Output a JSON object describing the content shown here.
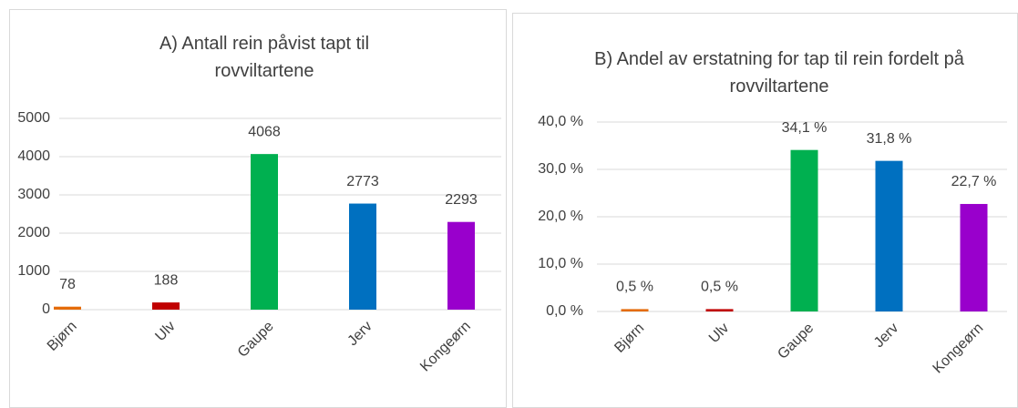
{
  "chart_data": [
    {
      "type": "bar",
      "title": "A) Antall rein påvist tapt til rovviltartene",
      "categories": [
        "Bjørn",
        "Ulv",
        "Gaupe",
        "Jerv",
        "Kongeørn"
      ],
      "values": [
        78,
        188,
        4068,
        2773,
        2293
      ],
      "colors": [
        "#e46c0a",
        "#c00000",
        "#00b050",
        "#0070c0",
        "#9900cc"
      ],
      "ylim": [
        0,
        5000
      ],
      "yticks": [
        0,
        1000,
        2000,
        3000,
        4000,
        5000
      ],
      "grid": true
    },
    {
      "type": "bar",
      "title": "B) Andel av erstatning for tap til rein fordelt på rovviltartene",
      "categories": [
        "Bjørn",
        "Ulv",
        "Gaupe",
        "Jerv",
        "Kongeørn"
      ],
      "values": [
        0.5,
        0.5,
        34.1,
        31.8,
        22.7
      ],
      "value_labels": [
        "0,5 %",
        "0,5 %",
        "34,1 %",
        "31,8 %",
        "22,7 %"
      ],
      "colors": [
        "#e46c0a",
        "#c00000",
        "#00b050",
        "#0070c0",
        "#9900cc"
      ],
      "ylim": [
        0,
        40
      ],
      "yticks": [
        {
          "value": 0,
          "label": "0,0 %"
        },
        {
          "value": 10,
          "label": "10,0 %"
        },
        {
          "value": 20,
          "label": "20,0 %"
        },
        {
          "value": 30,
          "label": "30,0 %"
        },
        {
          "value": 40,
          "label": "40,0 %"
        }
      ],
      "grid": true
    }
  ]
}
